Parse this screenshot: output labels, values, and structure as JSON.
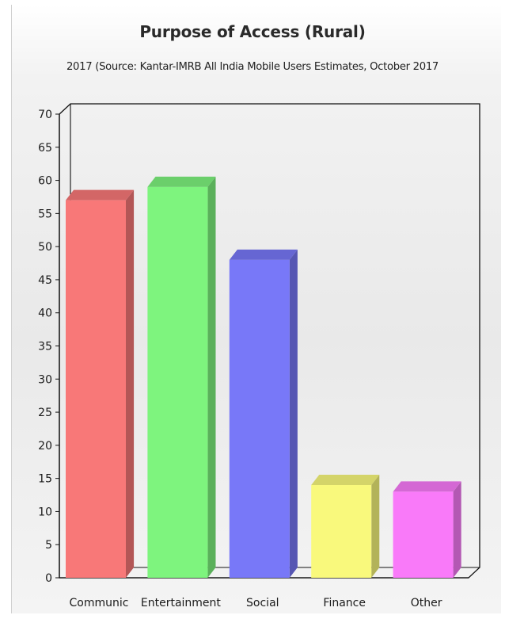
{
  "chart_data": {
    "type": "bar",
    "title": "Purpose of Access (Rural)",
    "subtitle": "2017 (Source: Kantar-IMRB All India Mobile Users Estimates, October 2017",
    "categories": [
      "Communic",
      "Entertainment",
      "Social",
      "Finance",
      "Other"
    ],
    "values": [
      57,
      59,
      48,
      14,
      13
    ],
    "colors": [
      "#f87878",
      "#7ef47e",
      "#7878f8",
      "#f9f97c",
      "#f97af9"
    ],
    "ylim": [
      0,
      70
    ],
    "yticks": [
      "0",
      "5",
      "10",
      "15",
      "20",
      "25",
      "30",
      "35",
      "40",
      "45",
      "50",
      "55",
      "60",
      "65",
      "70"
    ],
    "grid": false,
    "legend": "none",
    "style": "3d"
  }
}
